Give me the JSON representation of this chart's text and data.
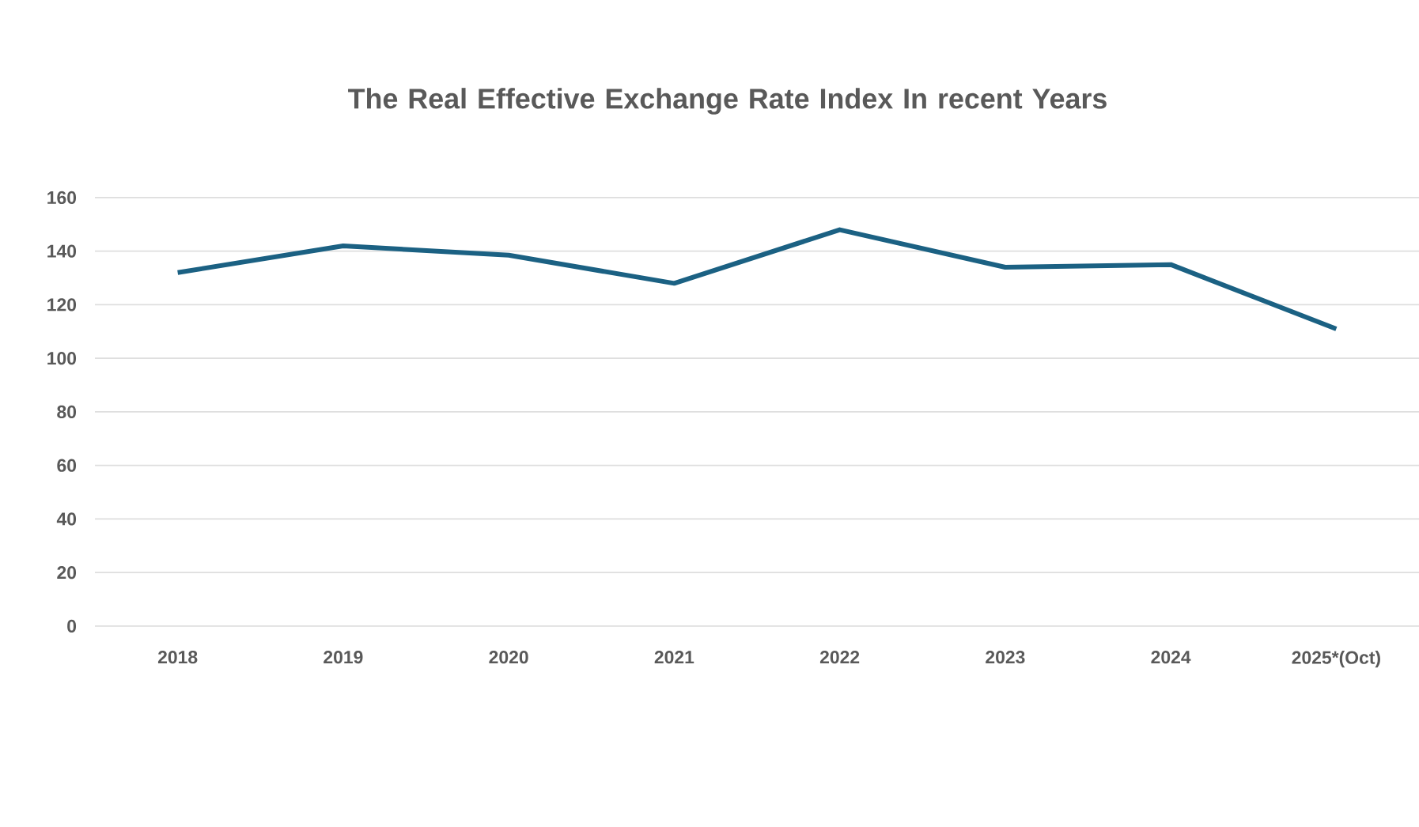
{
  "chart_data": {
    "type": "line",
    "title": "The Real Effective Exchange Rate Index In recent Years",
    "categories": [
      "2018",
      "2019",
      "2020",
      "2021",
      "2022",
      "2023",
      "2024",
      "2025*(Oct)"
    ],
    "series": [
      {
        "color": "#1b6183",
        "values": [
          132,
          142,
          138.5,
          128,
          148,
          134,
          135,
          111
        ]
      }
    ],
    "ylim": [
      0,
      160
    ],
    "yticks": [
      0,
      20,
      40,
      60,
      80,
      100,
      120,
      140,
      160
    ],
    "grid": "y",
    "legend": false,
    "marker": "none",
    "line_style": "solid"
  }
}
